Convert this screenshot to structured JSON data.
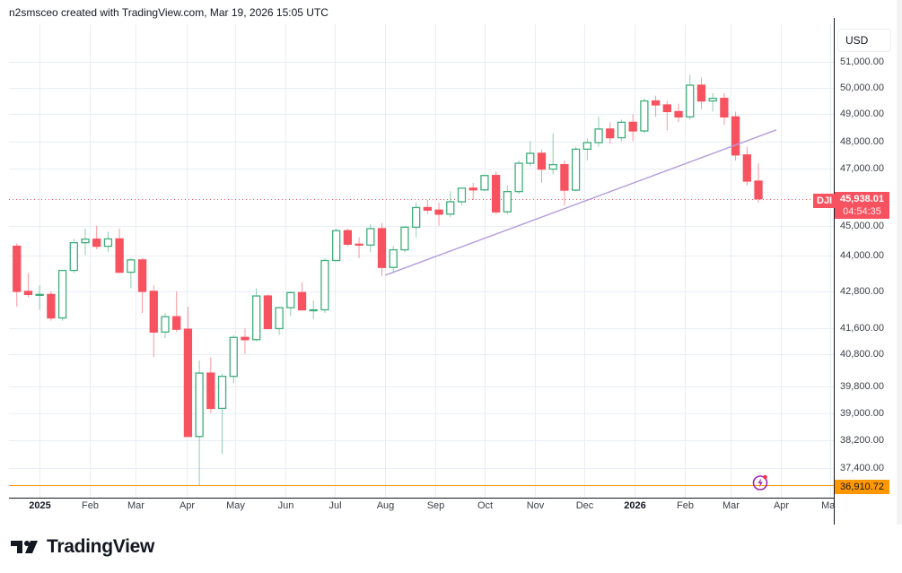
{
  "header": {
    "attribution": "n2smsceo created with TradingView.com, Mar 19, 2026 15:05 UTC"
  },
  "price_axis": {
    "currency": "USD"
  },
  "last_price": {
    "symbol": "DJI",
    "value": "45,938.01",
    "countdown": "04:54:35",
    "color": "#f7525f"
  },
  "horizontal_line": {
    "value": 36910.72,
    "label": "36,910.72",
    "color": "#ff9800"
  },
  "logo": {
    "text": "TradingView"
  },
  "colors": {
    "up": "#3fae7c",
    "down": "#f7525f",
    "grid": "#e8eef4",
    "trendline": "#b39ddb"
  },
  "chart_data": {
    "type": "candlestick",
    "title": "DJI",
    "scale": "log",
    "interval_note": "weekly approximation of daily candles",
    "ylim": [
      36600,
      51700
    ],
    "y_ticks": [
      51000,
      50000,
      49000,
      48000,
      47000,
      45000,
      44000,
      42800,
      41600,
      40800,
      39800,
      39000,
      38200,
      37400
    ],
    "y_tick_labels": [
      "51,000.00",
      "50,000.00",
      "49,000.00",
      "48,000.00",
      "47,000.00",
      "45,000.00",
      "44,000.00",
      "42,800.00",
      "41,600.00",
      "40,800.00",
      "39,800.00",
      "39,000.00",
      "38,200.00",
      "37,400.00"
    ],
    "x_ticks": [
      {
        "date": "2025-01-01",
        "label": "2025",
        "year": true
      },
      {
        "date": "2025-02-01",
        "label": "Feb"
      },
      {
        "date": "2025-03-01",
        "label": "Mar"
      },
      {
        "date": "2025-04-01",
        "label": "Apr"
      },
      {
        "date": "2025-05-01",
        "label": "May"
      },
      {
        "date": "2025-06-01",
        "label": "Jun"
      },
      {
        "date": "2025-07-01",
        "label": "Jul"
      },
      {
        "date": "2025-08-01",
        "label": "Aug"
      },
      {
        "date": "2025-09-01",
        "label": "Sep"
      },
      {
        "date": "2025-10-01",
        "label": "Oct"
      },
      {
        "date": "2025-11-01",
        "label": "Nov"
      },
      {
        "date": "2025-12-01",
        "label": "Dec"
      },
      {
        "date": "2026-01-01",
        "label": "2026",
        "year": true
      },
      {
        "date": "2026-02-01",
        "label": "Feb"
      },
      {
        "date": "2026-03-01",
        "label": "Mar"
      },
      {
        "date": "2026-04-01",
        "label": "Apr"
      },
      {
        "date": "2026-05-01",
        "label": "May"
      }
    ],
    "trendline": [
      {
        "date": "2025-08-01",
        "price": 43330
      },
      {
        "date": "2026-03-29",
        "price": 48420
      }
    ],
    "candles": [
      [
        "2024-12-16",
        44300,
        44400,
        42300,
        42800
      ],
      [
        "2024-12-23",
        42800,
        43400,
        42600,
        42700
      ],
      [
        "2024-12-30",
        42700,
        43000,
        42200,
        42700
      ],
      [
        "2025-01-06",
        42700,
        42800,
        41850,
        41940
      ],
      [
        "2025-01-13",
        41940,
        43500,
        41850,
        43490
      ],
      [
        "2025-01-20",
        43490,
        44550,
        43400,
        44420
      ],
      [
        "2025-01-27",
        44420,
        44900,
        44000,
        44540
      ],
      [
        "2025-02-03",
        44540,
        45000,
        44200,
        44300
      ],
      [
        "2025-02-10",
        44300,
        44800,
        44100,
        44550
      ],
      [
        "2025-02-17",
        44550,
        44900,
        43400,
        43430
      ],
      [
        "2025-02-24",
        43430,
        43900,
        42900,
        43840
      ],
      [
        "2025-03-03",
        43840,
        43900,
        42100,
        42800
      ],
      [
        "2025-03-10",
        42800,
        43000,
        40700,
        41490
      ],
      [
        "2025-03-17",
        41490,
        42100,
        41300,
        41980
      ],
      [
        "2025-03-24",
        41980,
        42800,
        41500,
        41580
      ],
      [
        "2025-03-31",
        41580,
        42300,
        38300,
        38310
      ],
      [
        "2025-04-07",
        38310,
        40600,
        36910,
        40210
      ],
      [
        "2025-04-14",
        40210,
        40700,
        39000,
        39140
      ],
      [
        "2025-04-21",
        39140,
        40200,
        37800,
        40110
      ],
      [
        "2025-04-28",
        40110,
        41400,
        39900,
        41320
      ],
      [
        "2025-05-05",
        41320,
        41600,
        40800,
        41250
      ],
      [
        "2025-05-12",
        41250,
        42900,
        41200,
        42650
      ],
      [
        "2025-05-19",
        42650,
        42700,
        41600,
        41600
      ],
      [
        "2025-05-26",
        41600,
        42300,
        41400,
        42270
      ],
      [
        "2025-06-02",
        42270,
        42800,
        42000,
        42760
      ],
      [
        "2025-06-09",
        42760,
        43100,
        42200,
        42200
      ],
      [
        "2025-06-16",
        42200,
        42500,
        41900,
        42200
      ],
      [
        "2025-06-23",
        42200,
        43900,
        42100,
        43820
      ],
      [
        "2025-06-30",
        43820,
        44900,
        43800,
        44830
      ],
      [
        "2025-07-07",
        44830,
        44900,
        44300,
        44370
      ],
      [
        "2025-07-14",
        44370,
        44600,
        43900,
        44340
      ],
      [
        "2025-07-21",
        44340,
        45050,
        44100,
        44900
      ],
      [
        "2025-07-28",
        44900,
        45100,
        43300,
        43590
      ],
      [
        "2025-08-04",
        43590,
        44300,
        43400,
        44180
      ],
      [
        "2025-08-11",
        44180,
        45000,
        44100,
        44950
      ],
      [
        "2025-08-18",
        44950,
        45800,
        44600,
        45630
      ],
      [
        "2025-08-25",
        45630,
        45900,
        45400,
        45540
      ],
      [
        "2025-09-01",
        45540,
        45800,
        45000,
        45400
      ],
      [
        "2025-09-08",
        45400,
        46200,
        45300,
        45830
      ],
      [
        "2025-09-15",
        45830,
        46300,
        45700,
        46310
      ],
      [
        "2025-09-22",
        46310,
        46500,
        45900,
        46250
      ],
      [
        "2025-09-29",
        46250,
        46800,
        46200,
        46760
      ],
      [
        "2025-10-06",
        46760,
        46900,
        45400,
        45480
      ],
      [
        "2025-10-13",
        45480,
        46400,
        45400,
        46190
      ],
      [
        "2025-10-20",
        46190,
        47300,
        46100,
        47200
      ],
      [
        "2025-10-27",
        47200,
        48000,
        47100,
        47560
      ],
      [
        "2025-11-03",
        47560,
        47700,
        46500,
        46990
      ],
      [
        "2025-11-10",
        46990,
        48300,
        46800,
        47150
      ],
      [
        "2025-11-17",
        47150,
        47300,
        45700,
        46240
      ],
      [
        "2025-11-24",
        46240,
        47800,
        46200,
        47710
      ],
      [
        "2025-12-01",
        47710,
        48100,
        47300,
        47950
      ],
      [
        "2025-12-08",
        47950,
        48900,
        47800,
        48450
      ],
      [
        "2025-12-15",
        48450,
        48700,
        47900,
        48130
      ],
      [
        "2025-12-22",
        48130,
        48800,
        48000,
        48700
      ],
      [
        "2025-12-29",
        48700,
        49000,
        48000,
        48380
      ],
      [
        "2026-01-05",
        48380,
        49600,
        48300,
        49500
      ],
      [
        "2026-01-12",
        49500,
        49700,
        48900,
        49350
      ],
      [
        "2026-01-19",
        49350,
        49500,
        48400,
        49100
      ],
      [
        "2026-01-26",
        49100,
        49400,
        48700,
        48900
      ],
      [
        "2026-02-02",
        48900,
        50500,
        48800,
        50100
      ],
      [
        "2026-02-09",
        50100,
        50400,
        49200,
        49500
      ],
      [
        "2026-02-16",
        49500,
        49800,
        49100,
        49600
      ],
      [
        "2026-02-23",
        49600,
        49800,
        48600,
        48900
      ],
      [
        "2026-03-02",
        48900,
        49100,
        47300,
        47500
      ],
      [
        "2026-03-09",
        47500,
        47800,
        46400,
        46560
      ],
      [
        "2026-03-16",
        46560,
        47200,
        45800,
        45938.01
      ]
    ]
  }
}
